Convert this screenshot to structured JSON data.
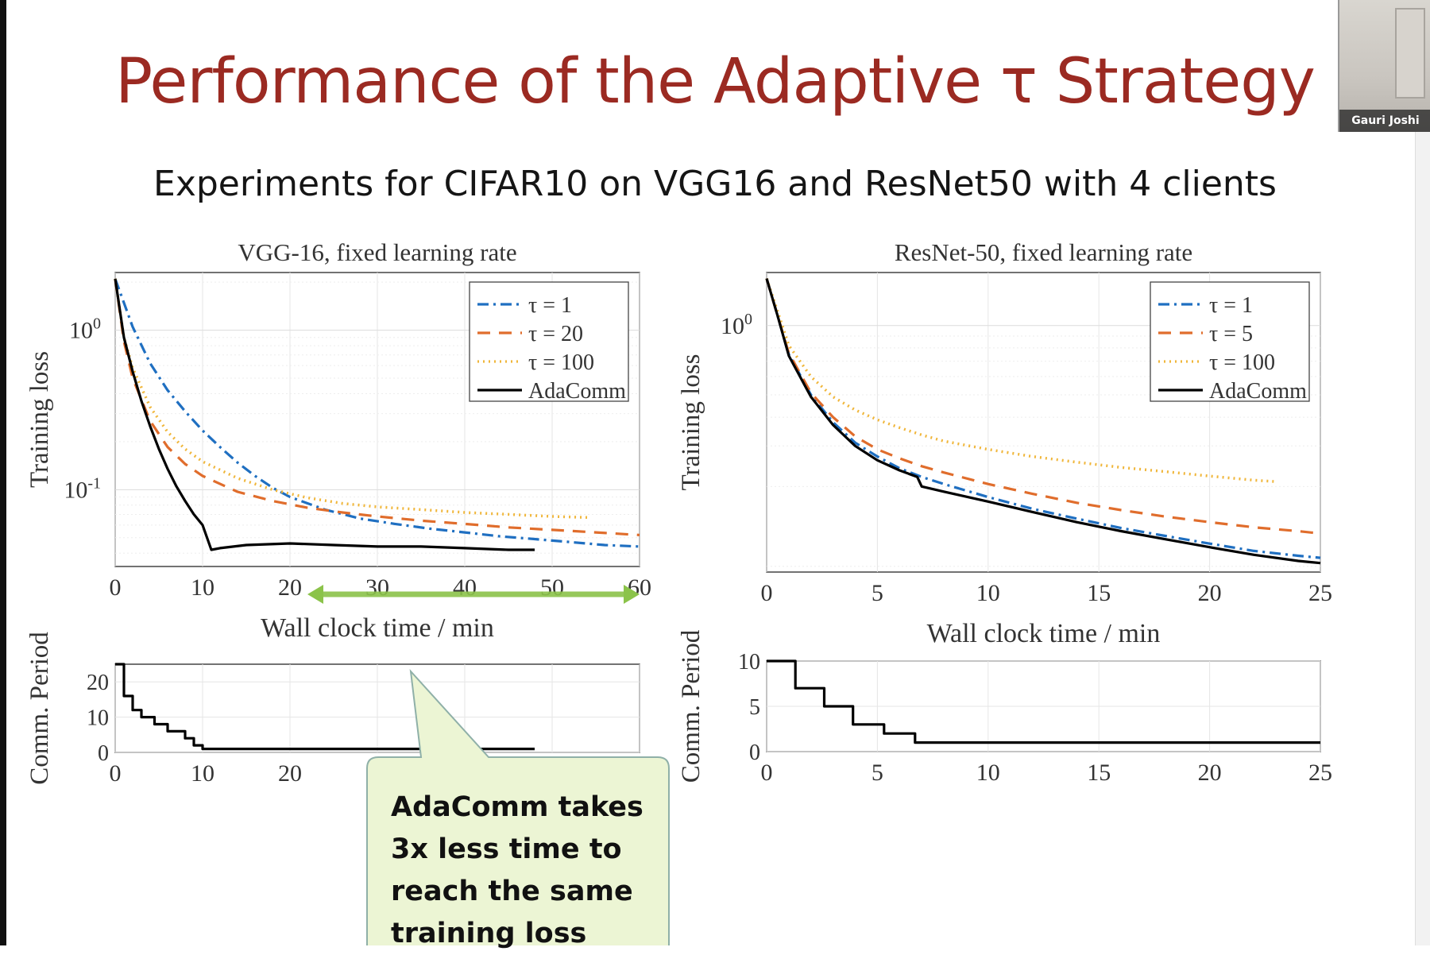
{
  "slide": {
    "title": "Performance of the Adaptive τ Strategy",
    "subtitle": "Experiments for CIFAR10 on VGG16 and ResNet50 with 4 clients"
  },
  "webcam": {
    "name": "Gauri Joshi"
  },
  "callout": {
    "lines": [
      "AdaComm takes",
      "3x less time to",
      "reach the same",
      "training loss"
    ],
    "fill": "#ecf5d4",
    "arrow": {
      "from": 22,
      "to": 60,
      "color": "#8bc34a"
    }
  },
  "colors": {
    "tau1": "#1f6fc1",
    "tau_mid": "#e06d2c",
    "tau100": "#f0b63a",
    "adacomm": "#000000"
  },
  "chart_data": [
    {
      "type": "line",
      "title": "VGG-16, fixed learning rate",
      "xlabel": "Wall clock time / min",
      "ylabel": "Training loss",
      "yscale": "log",
      "xlim": [
        0,
        60
      ],
      "ylim": [
        0.033,
        2.3
      ],
      "xticks": [
        "0",
        "10",
        "20",
        "30",
        "40",
        "50",
        "60"
      ],
      "yticks": [
        {
          "v": 1,
          "base": "10",
          "exp": "0"
        },
        {
          "v": 0.1,
          "base": "10",
          "exp": "-1"
        }
      ],
      "grid": true,
      "legend_placement": "top-right",
      "series": [
        {
          "name": "τ = 1",
          "style": "dashdot",
          "color": "#1f6fc1",
          "x": [
            0,
            2,
            4,
            6,
            8,
            10,
            12,
            14,
            16,
            18,
            20,
            24,
            28,
            32,
            36,
            40,
            44,
            48,
            52,
            56,
            60
          ],
          "y": [
            2.1,
            1.05,
            0.62,
            0.42,
            0.31,
            0.235,
            0.185,
            0.148,
            0.122,
            0.103,
            0.09,
            0.075,
            0.066,
            0.061,
            0.057,
            0.054,
            0.051,
            0.049,
            0.047,
            0.045,
            0.044
          ]
        },
        {
          "name": "τ = 20",
          "style": "dashed",
          "color": "#e06d2c",
          "x": [
            0,
            1,
            2,
            4,
            6,
            8,
            10,
            14,
            18,
            22,
            26,
            30,
            35,
            40,
            45,
            50,
            55,
            60
          ],
          "y": [
            2.1,
            0.85,
            0.5,
            0.27,
            0.185,
            0.145,
            0.122,
            0.097,
            0.085,
            0.077,
            0.072,
            0.068,
            0.064,
            0.061,
            0.058,
            0.056,
            0.054,
            0.052
          ]
        },
        {
          "name": "τ = 100",
          "style": "dotted",
          "color": "#f0b63a",
          "x": [
            0,
            1,
            2,
            4,
            6,
            8,
            10,
            14,
            18,
            22,
            26,
            30,
            35,
            40,
            45,
            50,
            54
          ],
          "y": [
            2.1,
            0.9,
            0.58,
            0.33,
            0.23,
            0.18,
            0.15,
            0.118,
            0.1,
            0.089,
            0.082,
            0.078,
            0.075,
            0.072,
            0.07,
            0.068,
            0.067
          ]
        },
        {
          "name": "AdaComm",
          "style": "solid",
          "color": "#000000",
          "x": [
            0,
            1,
            2,
            3,
            4,
            5,
            6,
            7,
            8,
            9,
            10,
            11,
            12,
            15,
            20,
            25,
            30,
            35,
            40,
            45,
            48
          ],
          "y": [
            2.1,
            0.9,
            0.55,
            0.36,
            0.25,
            0.18,
            0.135,
            0.105,
            0.085,
            0.07,
            0.06,
            0.042,
            0.043,
            0.045,
            0.046,
            0.045,
            0.044,
            0.044,
            0.043,
            0.042,
            0.042
          ]
        }
      ]
    },
    {
      "type": "line",
      "title": "ResNet-50, fixed learning rate",
      "xlabel": "Wall clock time / min",
      "ylabel": "Training loss",
      "yscale": "log",
      "xlim": [
        0,
        25
      ],
      "ylim": [
        0.085,
        1.7
      ],
      "xticks": [
        "0",
        "5",
        "10",
        "15",
        "20",
        "25"
      ],
      "yticks": [
        {
          "v": 1,
          "base": "10",
          "exp": "0"
        }
      ],
      "grid": true,
      "legend_placement": "top-right",
      "series": [
        {
          "name": "τ = 1",
          "style": "dashdot",
          "color": "#1f6fc1",
          "x": [
            0,
            0.5,
            1,
            2,
            3,
            4,
            5,
            6,
            7,
            8,
            10,
            12,
            14,
            16,
            18,
            20,
            22,
            24,
            25
          ],
          "y": [
            1.6,
            1.1,
            0.75,
            0.5,
            0.38,
            0.31,
            0.27,
            0.24,
            0.22,
            0.205,
            0.18,
            0.16,
            0.145,
            0.132,
            0.122,
            0.113,
            0.105,
            0.1,
            0.098
          ]
        },
        {
          "name": "τ = 5",
          "style": "dashed",
          "color": "#e06d2c",
          "x": [
            0,
            0.5,
            1,
            2,
            3,
            4,
            5,
            6,
            7,
            8,
            10,
            12,
            14,
            16,
            18,
            20,
            22,
            24,
            25
          ],
          "y": [
            1.6,
            1.1,
            0.76,
            0.51,
            0.4,
            0.33,
            0.29,
            0.265,
            0.245,
            0.23,
            0.205,
            0.186,
            0.17,
            0.158,
            0.148,
            0.14,
            0.133,
            0.128,
            0.125
          ]
        },
        {
          "name": "τ = 100",
          "style": "dotted",
          "color": "#f0b63a",
          "x": [
            0,
            0.5,
            1,
            2,
            3,
            4,
            5,
            6,
            7,
            8,
            10,
            12,
            14,
            16,
            18,
            20,
            22,
            23
          ],
          "y": [
            1.6,
            1.15,
            0.82,
            0.6,
            0.49,
            0.43,
            0.39,
            0.36,
            0.335,
            0.315,
            0.29,
            0.27,
            0.255,
            0.242,
            0.232,
            0.222,
            0.213,
            0.21
          ]
        },
        {
          "name": "AdaComm",
          "style": "solid",
          "color": "#000000",
          "x": [
            0,
            0.5,
            1,
            2,
            3,
            4,
            5,
            6,
            6.8,
            7,
            8,
            10,
            12,
            14,
            16,
            18,
            20,
            22,
            24,
            25
          ],
          "y": [
            1.6,
            1.1,
            0.74,
            0.49,
            0.37,
            0.3,
            0.26,
            0.235,
            0.22,
            0.2,
            0.19,
            0.172,
            0.155,
            0.14,
            0.128,
            0.118,
            0.109,
            0.101,
            0.095,
            0.093
          ]
        }
      ]
    },
    {
      "type": "line",
      "title": "",
      "xlabel": "",
      "ylabel": "Comm. Period",
      "xlim": [
        0,
        60
      ],
      "ylim": [
        0,
        25
      ],
      "xticks": [
        "0",
        "10",
        "20",
        "30",
        "40",
        "50",
        "60"
      ],
      "yticks": [
        "0",
        "10",
        "20"
      ],
      "grid": true,
      "series": [
        {
          "name": "",
          "style": "step",
          "color": "#000000",
          "x": [
            0,
            1,
            1,
            2,
            2,
            3,
            3,
            4.5,
            4.5,
            6,
            6,
            8,
            8,
            9,
            9,
            10,
            10,
            11,
            11,
            48
          ],
          "y": [
            25,
            25,
            16,
            16,
            12,
            12,
            10,
            10,
            8,
            8,
            6,
            6,
            4,
            4,
            2,
            2,
            1,
            1,
            1,
            1
          ]
        }
      ]
    },
    {
      "type": "line",
      "title": "",
      "xlabel": "",
      "ylabel": "Comm. Period",
      "xlim": [
        0,
        25
      ],
      "ylim": [
        0,
        10
      ],
      "xticks": [
        "0",
        "5",
        "10",
        "15",
        "20",
        "25"
      ],
      "yticks": [
        "0",
        "5",
        "10"
      ],
      "grid": true,
      "series": [
        {
          "name": "",
          "style": "step",
          "color": "#000000",
          "x": [
            0,
            1.3,
            1.3,
            2.6,
            2.6,
            3.9,
            3.9,
            5.3,
            5.3,
            6.7,
            6.7,
            25
          ],
          "y": [
            10,
            10,
            7,
            7,
            5,
            5,
            3,
            3,
            2,
            2,
            1,
            1
          ]
        }
      ]
    }
  ]
}
